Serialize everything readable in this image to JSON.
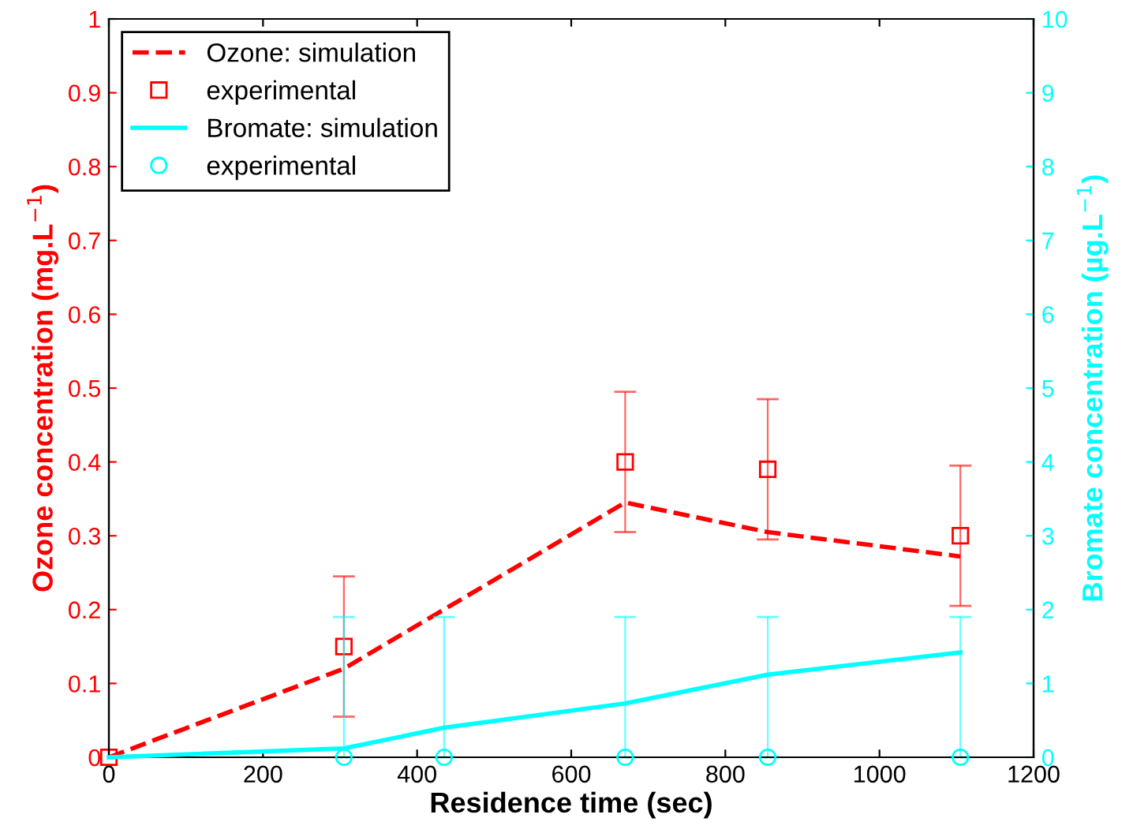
{
  "chart_data": {
    "type": "line",
    "xlabel": "Residence time (sec)",
    "ylabel": "Ozone concentration (mg.L$^{−1}$)",
    "y2label": "Bromate concentration (µg.L$^{−1}$)",
    "xlim": [
      0,
      1200
    ],
    "xticks": [
      0,
      200,
      400,
      600,
      800,
      1000,
      1200
    ],
    "ylim": [
      0,
      1
    ],
    "yticks": [
      0,
      0.1,
      0.2,
      0.3,
      0.4,
      0.5,
      0.6,
      0.7,
      0.8,
      0.9,
      1
    ],
    "y2lim": [
      0,
      10
    ],
    "y2ticks": [
      0,
      1,
      2,
      3,
      4,
      5,
      6,
      7,
      8,
      9,
      10
    ],
    "grid": false,
    "legend": "top left",
    "series": [
      {
        "name": "Ozone: simulation",
        "color": "#ff0000",
        "line_style": "dashed",
        "marker": "none",
        "x": [
          0,
          305,
          670,
          855,
          1105
        ],
        "values": [
          0,
          0.12,
          0.345,
          0.305,
          0.272
        ]
      },
      {
        "name": "experimental",
        "type": "scatter",
        "color": "#ff0000",
        "marker": "square",
        "x": [
          0,
          305,
          670,
          855,
          1105
        ],
        "values": [
          0,
          0.15,
          0.4,
          0.39,
          0.3
        ],
        "errors": [
          null,
          [
            0.055,
            0.245
          ],
          [
            0.305,
            0.495
          ],
          [
            0.295,
            0.485
          ],
          [
            0.205,
            0.395
          ]
        ]
      },
      {
        "name": "Bromate: simulation",
        "type": "line",
        "axis": "y2",
        "color": "#00ffff",
        "line_style": "solid",
        "marker": "none",
        "x": [
          0,
          305,
          435,
          670,
          855,
          1105
        ],
        "values": [
          0,
          0.12,
          0.4,
          0.73,
          1.12,
          1.42
        ]
      },
      {
        "name": "experimental",
        "type": "scatter",
        "axis": "y2",
        "color": "#00ffff",
        "marker": "circle",
        "x": [
          305,
          435,
          670,
          855,
          1105
        ],
        "values": [
          0,
          0,
          0,
          0,
          0
        ],
        "errors": [
          [
            0,
            1.9
          ],
          [
            0,
            1.9
          ],
          [
            0,
            1.9
          ],
          [
            0,
            1.9
          ],
          [
            0,
            1.9
          ]
        ]
      }
    ]
  }
}
